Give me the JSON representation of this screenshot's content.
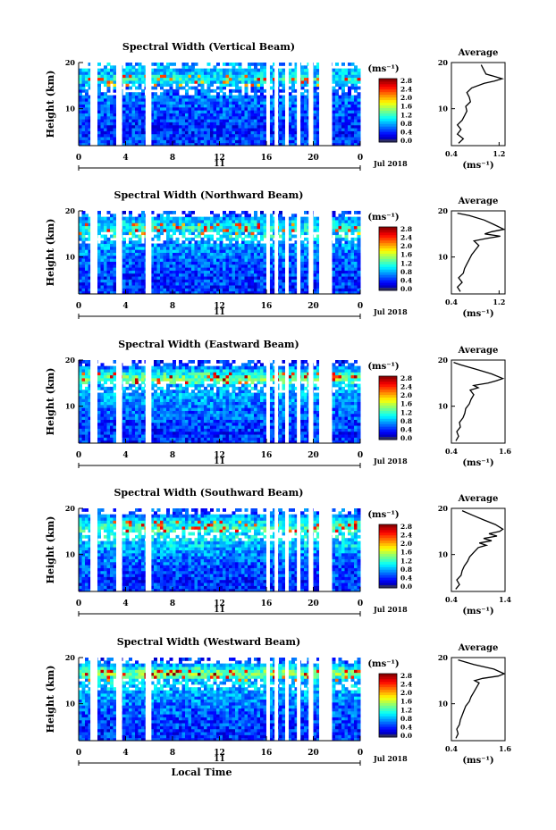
{
  "chart_data": [
    {
      "type": "heatmap",
      "title": "Spectral Width (Vertical Beam)",
      "ylabel": "Height (km)",
      "x_ticks": [
        "0",
        "4",
        "8",
        "12",
        "16",
        "20",
        "0"
      ],
      "xlim": [
        0,
        24
      ],
      "y_ticks": [
        "20",
        "10"
      ],
      "ylim": [
        2,
        20
      ],
      "date_mid": "11",
      "date_right": "Jul 2018",
      "colorbar": {
        "unit": "(ms⁻¹)",
        "ticks": [
          "2.8",
          "2.4",
          "2.0",
          "1.6",
          "1.2",
          "0.8",
          "0.4",
          "0.0"
        ],
        "max": 2.8
      },
      "gaps_hours": [
        [
          1.0,
          1.6
        ],
        [
          3.2,
          3.7
        ],
        [
          5.7,
          6.2
        ],
        [
          16.0,
          16.3
        ],
        [
          16.7,
          17.0
        ],
        [
          17.6,
          17.9
        ],
        [
          18.6,
          18.9
        ],
        [
          19.6,
          20.0
        ],
        [
          20.5,
          21.6
        ]
      ],
      "average": {
        "title": "Average",
        "x_ticks": [
          "0.4",
          "1.2"
        ],
        "xlim": [
          0.4,
          1.3
        ],
        "ylim": [
          2,
          20
        ],
        "y_ticks": [
          "20",
          "10"
        ],
        "xlabel": "(ms⁻¹)",
        "profile": [
          [
            2.5,
            0.52
          ],
          [
            3.5,
            0.6
          ],
          [
            4.5,
            0.5
          ],
          [
            5.5,
            0.56
          ],
          [
            6.5,
            0.5
          ],
          [
            7.5,
            0.58
          ],
          [
            8.5,
            0.62
          ],
          [
            9.5,
            0.66
          ],
          [
            10.5,
            0.64
          ],
          [
            11.5,
            0.72
          ],
          [
            12.5,
            0.7
          ],
          [
            13.5,
            0.66
          ],
          [
            14.5,
            0.74
          ],
          [
            15.5,
            0.95
          ],
          [
            16.0,
            1.12
          ],
          [
            16.5,
            1.25
          ],
          [
            17.0,
            1.12
          ],
          [
            17.5,
            0.98
          ],
          [
            18.5,
            0.94
          ],
          [
            19.5,
            0.9
          ]
        ]
      }
    },
    {
      "type": "heatmap",
      "title": "Spectral Width (Northward Beam)",
      "ylabel": "Height (km)",
      "x_ticks": [
        "0",
        "4",
        "8",
        "12",
        "16",
        "20",
        "0"
      ],
      "xlim": [
        0,
        24
      ],
      "y_ticks": [
        "20",
        "10"
      ],
      "ylim": [
        2,
        20
      ],
      "date_mid": "11",
      "date_right": "Jul 2018",
      "colorbar": {
        "unit": "(ms⁻¹)",
        "ticks": [
          "2.8",
          "2.4",
          "2.0",
          "1.6",
          "1.2",
          "0.8",
          "0.4",
          "0.0"
        ],
        "max": 2.8
      },
      "gaps_hours": [
        [
          1.0,
          1.6
        ],
        [
          3.2,
          3.7
        ],
        [
          5.7,
          6.2
        ],
        [
          16.0,
          16.3
        ],
        [
          16.7,
          17.0
        ],
        [
          17.6,
          17.9
        ],
        [
          18.6,
          18.9
        ],
        [
          19.6,
          20.0
        ],
        [
          20.5,
          21.6
        ]
      ],
      "average": {
        "title": "Average",
        "x_ticks": [
          "0.4",
          "1.2"
        ],
        "xlim": [
          0.4,
          1.3
        ],
        "ylim": [
          2,
          20
        ],
        "y_ticks": [
          "20",
          "10"
        ],
        "xlabel": "(ms⁻¹)",
        "profile": [
          [
            2.5,
            0.55
          ],
          [
            3.5,
            0.5
          ],
          [
            4.5,
            0.58
          ],
          [
            5.5,
            0.52
          ],
          [
            6.5,
            0.6
          ],
          [
            7.5,
            0.62
          ],
          [
            8.5,
            0.66
          ],
          [
            9.5,
            0.7
          ],
          [
            10.5,
            0.74
          ],
          [
            11.5,
            0.8
          ],
          [
            12.5,
            0.86
          ],
          [
            13.5,
            0.78
          ],
          [
            14.0,
            0.98
          ],
          [
            14.5,
            1.22
          ],
          [
            15.0,
            0.96
          ],
          [
            15.5,
            1.08
          ],
          [
            16.0,
            1.28
          ],
          [
            17.0,
            1.12
          ],
          [
            18.0,
            0.95
          ],
          [
            19.0,
            0.7
          ],
          [
            19.5,
            0.5
          ]
        ]
      }
    },
    {
      "type": "heatmap",
      "title": "Spectral Width (Eastward Beam)",
      "ylabel": "Height (km)",
      "x_ticks": [
        "0",
        "4",
        "8",
        "12",
        "16",
        "20",
        "0"
      ],
      "xlim": [
        0,
        24
      ],
      "y_ticks": [
        "20",
        "10"
      ],
      "ylim": [
        2,
        20
      ],
      "date_mid": "11",
      "date_right": "Jul 2018",
      "colorbar": {
        "unit": "(ms⁻¹)",
        "ticks": [
          "2.8",
          "2.4",
          "2.0",
          "1.6",
          "1.2",
          "0.8",
          "0.4",
          "0.0"
        ],
        "max": 2.8
      },
      "gaps_hours": [
        [
          1.0,
          1.6
        ],
        [
          3.2,
          3.7
        ],
        [
          5.7,
          6.2
        ],
        [
          16.0,
          16.3
        ],
        [
          16.7,
          17.0
        ],
        [
          17.6,
          17.9
        ],
        [
          18.6,
          18.9
        ],
        [
          19.6,
          20.0
        ],
        [
          20.5,
          21.6
        ]
      ],
      "average": {
        "title": "Average",
        "x_ticks": [
          "0.4",
          "1.6"
        ],
        "xlim": [
          0.4,
          1.6
        ],
        "ylim": [
          2,
          20
        ],
        "y_ticks": [
          "20",
          "10"
        ],
        "xlabel": "(ms⁻¹)",
        "profile": [
          [
            2.5,
            0.5
          ],
          [
            3.5,
            0.56
          ],
          [
            4.5,
            0.52
          ],
          [
            5.5,
            0.6
          ],
          [
            6.5,
            0.58
          ],
          [
            7.5,
            0.66
          ],
          [
            8.5,
            0.7
          ],
          [
            9.5,
            0.72
          ],
          [
            10.5,
            0.8
          ],
          [
            11.5,
            0.84
          ],
          [
            12.5,
            0.9
          ],
          [
            13.5,
            0.82
          ],
          [
            14.0,
            1.0
          ],
          [
            14.5,
            0.9
          ],
          [
            15.0,
            1.22
          ],
          [
            15.5,
            1.4
          ],
          [
            16.0,
            1.55
          ],
          [
            17.0,
            1.3
          ],
          [
            18.0,
            0.95
          ],
          [
            19.0,
            0.6
          ],
          [
            19.5,
            0.45
          ]
        ]
      }
    },
    {
      "type": "heatmap",
      "title": "Spectral Width (Southward Beam)",
      "ylabel": "Height (km)",
      "x_ticks": [
        "0",
        "4",
        "8",
        "12",
        "16",
        "20",
        "0"
      ],
      "xlim": [
        0,
        24
      ],
      "y_ticks": [
        "20",
        "10"
      ],
      "ylim": [
        2,
        20
      ],
      "date_mid": "11",
      "date_right": "Jul 2018",
      "colorbar": {
        "unit": "(ms⁻¹)",
        "ticks": [
          "2.8",
          "2.4",
          "2.0",
          "1.6",
          "1.2",
          "0.8",
          "0.4",
          "0.0"
        ],
        "max": 2.8
      },
      "gaps_hours": [
        [
          1.0,
          1.6
        ],
        [
          3.2,
          3.7
        ],
        [
          5.7,
          6.2
        ],
        [
          16.0,
          16.3
        ],
        [
          16.7,
          17.0
        ],
        [
          17.6,
          17.9
        ],
        [
          18.6,
          18.9
        ],
        [
          19.6,
          20.0
        ],
        [
          20.5,
          21.6
        ]
      ],
      "average": {
        "title": "Average",
        "x_ticks": [
          "0.4",
          "1.4"
        ],
        "xlim": [
          0.4,
          1.4
        ],
        "ylim": [
          2,
          20
        ],
        "y_ticks": [
          "20",
          "10"
        ],
        "xlabel": "(ms⁻¹)",
        "profile": [
          [
            2.5,
            0.48
          ],
          [
            3.5,
            0.55
          ],
          [
            4.5,
            0.5
          ],
          [
            5.5,
            0.58
          ],
          [
            6.5,
            0.6
          ],
          [
            7.5,
            0.64
          ],
          [
            8.5,
            0.7
          ],
          [
            9.5,
            0.74
          ],
          [
            10.5,
            0.82
          ],
          [
            11.5,
            0.9
          ],
          [
            12.0,
            1.05
          ],
          [
            12.5,
            0.92
          ],
          [
            13.0,
            1.15
          ],
          [
            13.5,
            1.0
          ],
          [
            14.0,
            1.25
          ],
          [
            14.5,
            1.1
          ],
          [
            15.0,
            1.3
          ],
          [
            15.5,
            1.36
          ],
          [
            16.5,
            1.22
          ],
          [
            17.5,
            1.0
          ],
          [
            18.5,
            0.8
          ],
          [
            19.5,
            0.6
          ]
        ]
      }
    },
    {
      "type": "heatmap",
      "title": "Spectral Width (Westward Beam)",
      "ylabel": "Height (km)",
      "x_ticks": [
        "0",
        "4",
        "8",
        "12",
        "16",
        "20",
        "0"
      ],
      "xlim": [
        0,
        24
      ],
      "y_ticks": [
        "20",
        "10"
      ],
      "ylim": [
        2,
        20
      ],
      "date_mid": "11",
      "date_right": "Jul 2018",
      "xlabel": "Local Time",
      "colorbar": {
        "unit": "(ms⁻¹)",
        "ticks": [
          "2.8",
          "2.4",
          "2.0",
          "1.6",
          "1.2",
          "0.8",
          "0.4",
          "0.0"
        ],
        "max": 2.8
      },
      "gaps_hours": [
        [
          1.0,
          1.6
        ],
        [
          3.2,
          3.7
        ],
        [
          5.7,
          6.2
        ],
        [
          16.0,
          16.3
        ],
        [
          16.7,
          17.0
        ],
        [
          17.6,
          17.9
        ],
        [
          18.6,
          18.9
        ],
        [
          19.6,
          20.0
        ],
        [
          20.5,
          21.6
        ]
      ],
      "average": {
        "title": "Average",
        "x_ticks": [
          "0.4",
          "1.6"
        ],
        "xlim": [
          0.4,
          1.6
        ],
        "ylim": [
          2,
          20
        ],
        "y_ticks": [
          "20",
          "10"
        ],
        "xlabel": "(ms⁻¹)",
        "profile": [
          [
            2.5,
            0.5
          ],
          [
            3.5,
            0.55
          ],
          [
            4.5,
            0.52
          ],
          [
            5.5,
            0.58
          ],
          [
            6.5,
            0.6
          ],
          [
            7.5,
            0.64
          ],
          [
            8.5,
            0.68
          ],
          [
            9.5,
            0.72
          ],
          [
            10.5,
            0.8
          ],
          [
            11.5,
            0.84
          ],
          [
            12.5,
            0.9
          ],
          [
            13.5,
            0.96
          ],
          [
            14.5,
            1.02
          ],
          [
            15.0,
            0.92
          ],
          [
            15.5,
            1.1
          ],
          [
            16.0,
            1.45
          ],
          [
            16.5,
            1.58
          ],
          [
            17.5,
            1.35
          ],
          [
            18.5,
            0.9
          ],
          [
            19.5,
            0.55
          ]
        ]
      }
    }
  ],
  "colors": {
    "axis": "#000000",
    "gap": "#ffffff",
    "profile_line": "#000000"
  }
}
